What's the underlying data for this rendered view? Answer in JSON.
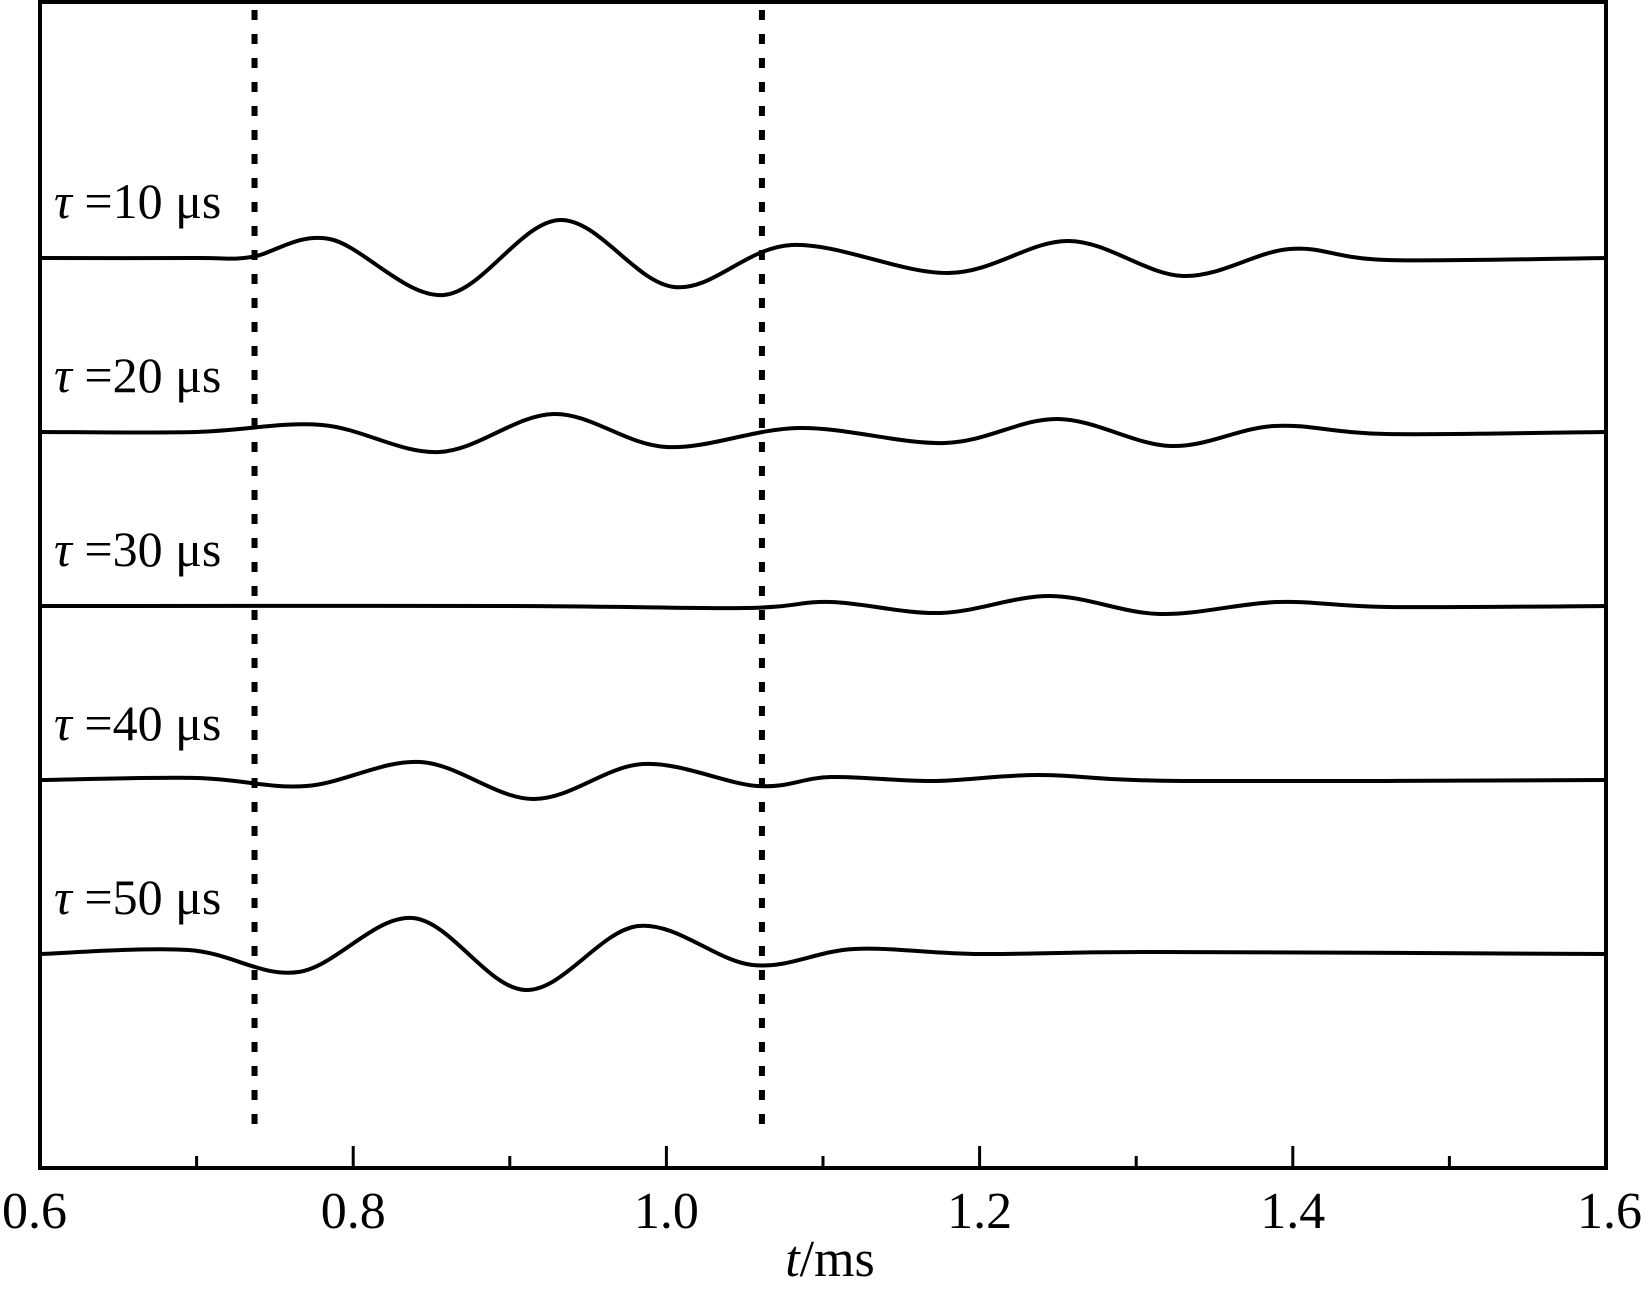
{
  "chart_data": {
    "type": "line",
    "title": "",
    "xlabel_var": "t",
    "xlabel_unit": "/ms",
    "ylabel": "",
    "xlim": [
      0.6,
      1.6
    ],
    "xticks": [
      0.6,
      0.8,
      1.0,
      1.2,
      1.4,
      1.6
    ],
    "xtick_labels": [
      "0.6",
      "0.8",
      "1.0",
      "1.2",
      "1.4",
      "1.6"
    ],
    "minor_xticks": [
      0.7,
      0.9,
      1.1,
      1.3,
      1.5
    ],
    "vertical_markers": [
      0.737,
      1.061
    ],
    "grid": false,
    "series": [
      {
        "name": "τ =10 μs",
        "label_var": "τ",
        "label_rest": " =10 μs",
        "baseline": 5,
        "x": [
          0.6,
          0.7,
          0.735,
          0.785,
          0.858,
          0.932,
          1.005,
          1.08,
          1.18,
          1.257,
          1.33,
          1.398,
          1.46,
          1.6
        ],
        "y": [
          0,
          0,
          0.01,
          0.19,
          -0.37,
          0.38,
          -0.29,
          0.13,
          -0.15,
          0.17,
          -0.18,
          0.09,
          -0.02,
          0
        ]
      },
      {
        "name": "τ =20 μs",
        "label_var": "τ",
        "label_rest": " =20 μs",
        "baseline": 4,
        "x": [
          0.6,
          0.7,
          0.78,
          0.855,
          0.928,
          1.0,
          1.085,
          1.178,
          1.25,
          1.322,
          1.388,
          1.46,
          1.6
        ],
        "y": [
          0,
          0,
          0.07,
          -0.2,
          0.18,
          -0.15,
          0.04,
          -0.11,
          0.13,
          -0.14,
          0.06,
          -0.02,
          0
        ]
      },
      {
        "name": "τ =30 μs",
        "label_var": "τ",
        "label_rest": " =30 μs",
        "baseline": 3,
        "x": [
          0.6,
          0.9,
          1.05,
          1.105,
          1.175,
          1.245,
          1.315,
          1.39,
          1.46,
          1.6
        ],
        "y": [
          0,
          0,
          -0.02,
          0.04,
          -0.07,
          0.1,
          -0.08,
          0.04,
          -0.01,
          0
        ]
      },
      {
        "name": "τ =40 μs",
        "label_var": "τ",
        "label_rest": " =40 μs",
        "baseline": 2,
        "x": [
          0.6,
          0.7,
          0.77,
          0.843,
          0.915,
          0.985,
          1.058,
          1.105,
          1.17,
          1.238,
          1.33,
          1.6
        ],
        "y": [
          0,
          0.02,
          -0.06,
          0.18,
          -0.19,
          0.16,
          -0.06,
          0.03,
          -0.01,
          0.05,
          -0.01,
          0
        ]
      },
      {
        "name": "τ =50 μs",
        "label_var": "τ",
        "label_rest": " =50 μs",
        "baseline": 1,
        "x": [
          0.6,
          0.695,
          0.765,
          0.838,
          0.91,
          0.982,
          1.055,
          1.12,
          1.2,
          1.31,
          1.6
        ],
        "y": [
          0,
          0.04,
          -0.18,
          0.36,
          -0.36,
          0.28,
          -0.11,
          0.05,
          0,
          0.02,
          0
        ]
      }
    ]
  }
}
